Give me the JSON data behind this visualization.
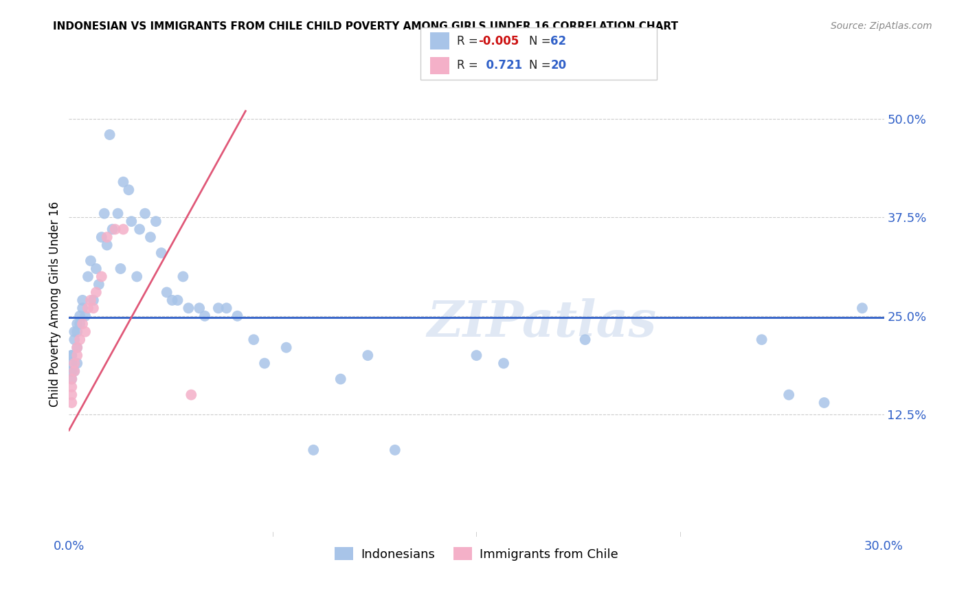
{
  "title": "INDONESIAN VS IMMIGRANTS FROM CHILE CHILD POVERTY AMONG GIRLS UNDER 16 CORRELATION CHART",
  "source": "Source: ZipAtlas.com",
  "ylabel": "Child Poverty Among Girls Under 16",
  "ytick_labels": [
    "12.5%",
    "25.0%",
    "37.5%",
    "50.0%"
  ],
  "ytick_values": [
    0.125,
    0.25,
    0.375,
    0.5
  ],
  "xlim": [
    0.0,
    0.3
  ],
  "ylim": [
    -0.03,
    0.56
  ],
  "legend1_R": "-0.005",
  "legend1_N": "62",
  "legend2_R": "0.721",
  "legend2_N": "20",
  "blue_color": "#a8c4e8",
  "pink_color": "#f4b0c8",
  "line_blue": "#3060c8",
  "line_pink": "#e05878",
  "watermark": "ZIPatlas",
  "indonesians_x": [
    0.001,
    0.001,
    0.001,
    0.001,
    0.001,
    0.002,
    0.002,
    0.002,
    0.003,
    0.003,
    0.003,
    0.003,
    0.004,
    0.004,
    0.005,
    0.005,
    0.006,
    0.007,
    0.008,
    0.009,
    0.01,
    0.011,
    0.012,
    0.013,
    0.014,
    0.015,
    0.016,
    0.018,
    0.019,
    0.02,
    0.022,
    0.023,
    0.025,
    0.026,
    0.028,
    0.03,
    0.032,
    0.034,
    0.036,
    0.038,
    0.04,
    0.042,
    0.044,
    0.048,
    0.05,
    0.055,
    0.058,
    0.062,
    0.068,
    0.072,
    0.08,
    0.09,
    0.1,
    0.11,
    0.12,
    0.15,
    0.16,
    0.19,
    0.255,
    0.265,
    0.278,
    0.292
  ],
  "indonesians_y": [
    0.2,
    0.2,
    0.19,
    0.18,
    0.17,
    0.23,
    0.22,
    0.18,
    0.24,
    0.23,
    0.21,
    0.19,
    0.25,
    0.24,
    0.27,
    0.26,
    0.25,
    0.3,
    0.32,
    0.27,
    0.31,
    0.29,
    0.35,
    0.38,
    0.34,
    0.48,
    0.36,
    0.38,
    0.31,
    0.42,
    0.41,
    0.37,
    0.3,
    0.36,
    0.38,
    0.35,
    0.37,
    0.33,
    0.28,
    0.27,
    0.27,
    0.3,
    0.26,
    0.26,
    0.25,
    0.26,
    0.26,
    0.25,
    0.22,
    0.19,
    0.21,
    0.08,
    0.17,
    0.2,
    0.08,
    0.2,
    0.19,
    0.22,
    0.22,
    0.15,
    0.14,
    0.26
  ],
  "chile_x": [
    0.001,
    0.001,
    0.001,
    0.001,
    0.002,
    0.002,
    0.003,
    0.003,
    0.004,
    0.005,
    0.006,
    0.007,
    0.008,
    0.009,
    0.01,
    0.012,
    0.014,
    0.017,
    0.02,
    0.045
  ],
  "chile_y": [
    0.17,
    0.16,
    0.15,
    0.14,
    0.19,
    0.18,
    0.21,
    0.2,
    0.22,
    0.24,
    0.23,
    0.26,
    0.27,
    0.26,
    0.28,
    0.3,
    0.35,
    0.36,
    0.36,
    0.15
  ],
  "blue_line_y_at_x0": 0.248,
  "blue_line_y_at_x1": 0.248,
  "pink_line_x0": 0.0,
  "pink_line_y0": 0.105,
  "pink_line_x1": 0.065,
  "pink_line_y1": 0.51
}
